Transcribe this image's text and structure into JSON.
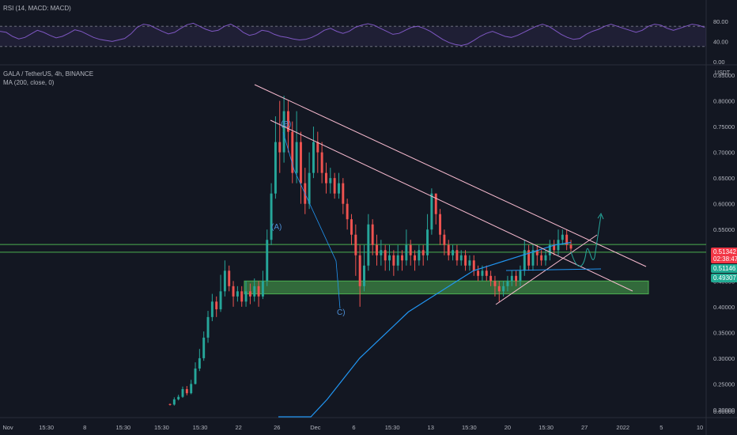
{
  "rsi_panel": {
    "label": "RSI (14, MACD: MACD)",
    "ticks": [
      {
        "text": "80.00",
        "v": 80
      },
      {
        "text": "40.00",
        "v": 40
      },
      {
        "text": "0.00",
        "v": 0
      }
    ],
    "levels": [
      70,
      30
    ]
  },
  "main_panel": {
    "symbol": "GALA / TetherUS, 4h, BINANCE",
    "indicator": "MA (200, close, 0)",
    "currency": "USDT"
  },
  "price_ticks": [
    "0.85000",
    "0.80000",
    "0.75000",
    "0.70000",
    "0.65000",
    "0.60000",
    "0.55000",
    "0.45000",
    "0.40000",
    "0.35000",
    "0.30000",
    "0.25000",
    "0.20000",
    "0.00000"
  ],
  "price_tags": {
    "last": {
      "price": "0.51342",
      "timer": "02:38:47",
      "color": "#f23645"
    },
    "level1": {
      "price": "0.51146",
      "color": "#22ab94"
    },
    "level2": {
      "price": "0.49307",
      "color": "#22ab94"
    }
  },
  "x_labels": [
    "Nov",
    "15:30",
    "8",
    "15:30",
    "15:30",
    "15:30",
    "22",
    "26",
    "Dec",
    "6",
    "15:30",
    "13",
    "15:30",
    "20",
    "15:30",
    "27",
    "2022",
    "5",
    "10"
  ],
  "wave_labels": [
    "(A)",
    "(B)",
    "C)"
  ],
  "colors": {
    "up": "#26a69a",
    "down": "#ef5350",
    "ma": "#2196f3",
    "trendline": "#f8bbd0",
    "support_zone": "#4caf50",
    "rsi": "#7e57c2",
    "rsi_band": "rgba(126,87,194,0.12)"
  },
  "chart_data": [
    {
      "type": "line",
      "title": "RSI (14, MACD: MACD)",
      "y_ticks": [
        0,
        40,
        80
      ],
      "y_range": [
        0,
        100
      ],
      "levels": [
        30,
        70
      ],
      "values": [
        60,
        58,
        50,
        45,
        48,
        55,
        62,
        58,
        52,
        47,
        50,
        56,
        63,
        60,
        54,
        48,
        44,
        42,
        40,
        43,
        46,
        55,
        68,
        74,
        72,
        66,
        60,
        55,
        58,
        66,
        73,
        76,
        70,
        64,
        60,
        62,
        70,
        74,
        68,
        58,
        52,
        55,
        62,
        60,
        54,
        50,
        48,
        45,
        43,
        44,
        48,
        54,
        62,
        66,
        60,
        56,
        60,
        68,
        72,
        75,
        72,
        66,
        60,
        54,
        56,
        62,
        68,
        70,
        66,
        60,
        52,
        44,
        38,
        34,
        32,
        35,
        42,
        50,
        56,
        60,
        55,
        50,
        48,
        52,
        58,
        64,
        70,
        74,
        70,
        62,
        54,
        48,
        44,
        46,
        54,
        60,
        64,
        70,
        74,
        70,
        66,
        62,
        58,
        62,
        70,
        74,
        72,
        66,
        62,
        66,
        70,
        74,
        72,
        68
      ]
    },
    {
      "type": "candlestick",
      "title": "GALA / TetherUS, 4h, BINANCE",
      "y_unit": "USDT",
      "y_range": [
        0.2,
        0.85
      ],
      "series_name": "MA (200, close, 0)",
      "candles": [
        [
          0.211,
          0.21,
          0.208,
          0.212
        ],
        [
          0.21,
          0.22,
          0.208,
          0.224
        ],
        [
          0.22,
          0.225,
          0.218,
          0.229
        ],
        [
          0.225,
          0.24,
          0.223,
          0.245
        ],
        [
          0.24,
          0.232,
          0.228,
          0.246
        ],
        [
          0.232,
          0.25,
          0.23,
          0.258
        ],
        [
          0.25,
          0.28,
          0.249,
          0.292
        ],
        [
          0.28,
          0.3,
          0.275,
          0.318
        ],
        [
          0.3,
          0.34,
          0.295,
          0.352
        ],
        [
          0.34,
          0.38,
          0.33,
          0.392
        ],
        [
          0.38,
          0.41,
          0.372,
          0.425
        ],
        [
          0.41,
          0.395,
          0.38,
          0.42
        ],
        [
          0.395,
          0.43,
          0.39,
          0.462
        ],
        [
          0.43,
          0.47,
          0.42,
          0.49
        ],
        [
          0.47,
          0.44,
          0.43,
          0.48
        ],
        [
          0.44,
          0.42,
          0.4,
          0.45
        ],
        [
          0.42,
          0.43,
          0.41,
          0.44
        ],
        [
          0.43,
          0.41,
          0.4,
          0.44
        ],
        [
          0.41,
          0.43,
          0.4,
          0.45
        ],
        [
          0.43,
          0.42,
          0.405,
          0.445
        ],
        [
          0.42,
          0.44,
          0.41,
          0.455
        ],
        [
          0.44,
          0.42,
          0.4,
          0.45
        ],
        [
          0.42,
          0.45,
          0.415,
          0.47
        ],
        [
          0.45,
          0.53,
          0.44,
          0.55
        ],
        [
          0.53,
          0.62,
          0.52,
          0.64
        ],
        [
          0.62,
          0.72,
          0.61,
          0.77
        ],
        [
          0.72,
          0.7,
          0.66,
          0.8
        ],
        [
          0.7,
          0.78,
          0.68,
          0.81
        ],
        [
          0.78,
          0.74,
          0.7,
          0.8
        ],
        [
          0.74,
          0.66,
          0.64,
          0.76
        ],
        [
          0.66,
          0.72,
          0.64,
          0.78
        ],
        [
          0.72,
          0.64,
          0.6,
          0.74
        ],
        [
          0.64,
          0.6,
          0.58,
          0.67
        ],
        [
          0.6,
          0.66,
          0.59,
          0.7
        ],
        [
          0.66,
          0.72,
          0.65,
          0.75
        ],
        [
          0.72,
          0.7,
          0.66,
          0.74
        ],
        [
          0.7,
          0.66,
          0.64,
          0.72
        ],
        [
          0.66,
          0.64,
          0.62,
          0.68
        ],
        [
          0.64,
          0.65,
          0.62,
          0.67
        ],
        [
          0.65,
          0.62,
          0.61,
          0.66
        ],
        [
          0.62,
          0.64,
          0.61,
          0.66
        ],
        [
          0.64,
          0.6,
          0.58,
          0.65
        ],
        [
          0.6,
          0.57,
          0.55,
          0.61
        ],
        [
          0.57,
          0.54,
          0.52,
          0.58
        ],
        [
          0.54,
          0.5,
          0.46,
          0.56
        ],
        [
          0.5,
          0.44,
          0.4,
          0.52
        ],
        [
          0.44,
          0.48,
          0.43,
          0.52
        ],
        [
          0.48,
          0.56,
          0.47,
          0.58
        ],
        [
          0.56,
          0.52,
          0.5,
          0.57
        ],
        [
          0.52,
          0.5,
          0.48,
          0.54
        ],
        [
          0.5,
          0.51,
          0.48,
          0.53
        ],
        [
          0.51,
          0.49,
          0.47,
          0.52
        ],
        [
          0.49,
          0.5,
          0.47,
          0.52
        ],
        [
          0.5,
          0.48,
          0.46,
          0.51
        ],
        [
          0.48,
          0.5,
          0.47,
          0.52
        ],
        [
          0.5,
          0.49,
          0.47,
          0.51
        ],
        [
          0.49,
          0.52,
          0.48,
          0.55
        ],
        [
          0.52,
          0.5,
          0.48,
          0.53
        ],
        [
          0.5,
          0.49,
          0.47,
          0.51
        ],
        [
          0.49,
          0.51,
          0.48,
          0.52
        ],
        [
          0.51,
          0.5,
          0.48,
          0.52
        ],
        [
          0.5,
          0.55,
          0.49,
          0.58
        ],
        [
          0.55,
          0.62,
          0.54,
          0.63
        ],
        [
          0.62,
          0.58,
          0.56,
          0.62
        ],
        [
          0.58,
          0.54,
          0.52,
          0.59
        ],
        [
          0.54,
          0.52,
          0.5,
          0.55
        ],
        [
          0.52,
          0.5,
          0.49,
          0.53
        ],
        [
          0.5,
          0.51,
          0.49,
          0.52
        ],
        [
          0.51,
          0.49,
          0.48,
          0.52
        ],
        [
          0.49,
          0.5,
          0.48,
          0.51
        ],
        [
          0.5,
          0.48,
          0.47,
          0.51
        ],
        [
          0.48,
          0.49,
          0.47,
          0.5
        ],
        [
          0.49,
          0.47,
          0.46,
          0.5
        ],
        [
          0.47,
          0.46,
          0.45,
          0.48
        ],
        [
          0.46,
          0.47,
          0.45,
          0.48
        ],
        [
          0.47,
          0.46,
          0.45,
          0.48
        ],
        [
          0.46,
          0.45,
          0.44,
          0.47
        ],
        [
          0.45,
          0.44,
          0.42,
          0.46
        ],
        [
          0.44,
          0.43,
          0.41,
          0.45
        ],
        [
          0.43,
          0.44,
          0.42,
          0.45
        ],
        [
          0.44,
          0.45,
          0.43,
          0.46
        ],
        [
          0.45,
          0.46,
          0.44,
          0.47
        ],
        [
          0.46,
          0.45,
          0.44,
          0.47
        ],
        [
          0.45,
          0.47,
          0.44,
          0.48
        ],
        [
          0.47,
          0.51,
          0.46,
          0.53
        ],
        [
          0.51,
          0.48,
          0.47,
          0.52
        ],
        [
          0.48,
          0.51,
          0.47,
          0.52
        ],
        [
          0.51,
          0.5,
          0.48,
          0.52
        ],
        [
          0.5,
          0.49,
          0.48,
          0.51
        ],
        [
          0.49,
          0.5,
          0.48,
          0.51
        ],
        [
          0.5,
          0.52,
          0.49,
          0.53
        ],
        [
          0.52,
          0.51,
          0.5,
          0.53
        ],
        [
          0.51,
          0.53,
          0.5,
          0.55
        ],
        [
          0.53,
          0.54,
          0.52,
          0.55
        ],
        [
          0.54,
          0.52,
          0.51,
          0.55
        ],
        [
          0.52,
          0.513,
          0.505,
          0.53
        ]
      ],
      "ma": [
        0.1,
        0.14,
        0.18,
        0.22,
        0.26,
        0.3,
        0.33,
        0.36,
        0.39,
        0.41,
        0.43,
        0.45,
        0.47,
        0.48,
        0.49,
        0.5,
        0.51,
        0.52,
        0.525
      ],
      "annotations": {
        "support_zone": [
          0.425,
          0.45
        ],
        "horizontal_lines": [
          0.521,
          0.506
        ]
      }
    }
  ]
}
